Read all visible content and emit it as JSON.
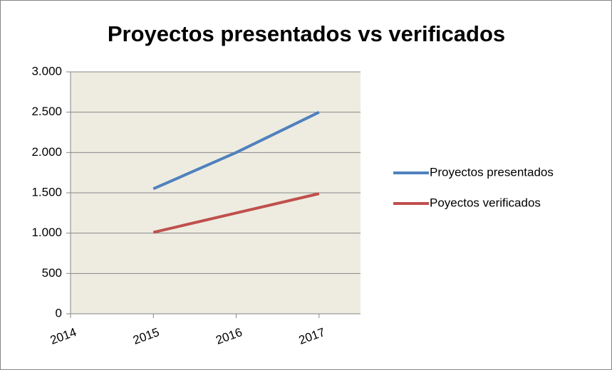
{
  "chart_data": {
    "type": "line",
    "title": "Proyectos presentados vs verificados",
    "x": [
      2015,
      2016,
      2017
    ],
    "series": [
      {
        "name": "Proyectos presentados",
        "color": "#4f81bd",
        "values": [
          1550,
          2000,
          2500
        ]
      },
      {
        "name": "Poyectos verificados",
        "color": "#c0504d",
        "values": [
          1010,
          1250,
          1490
        ]
      }
    ],
    "xlim": [
      2014,
      2017.5
    ],
    "xticks": [
      2014,
      2015,
      2016,
      2017
    ],
    "ylim": [
      0,
      3000
    ],
    "yticks": [
      0,
      500,
      {
        "value": 1000,
        "label": "1.000"
      },
      {
        "value": 1500,
        "label": "1.500"
      },
      {
        "value": 2000,
        "label": "2.000"
      },
      {
        "value": 2500,
        "label": "2.500"
      },
      {
        "value": 3000,
        "label": "3.000"
      }
    ],
    "grid": true,
    "legend": "right",
    "plot_background": "#eeece1"
  }
}
